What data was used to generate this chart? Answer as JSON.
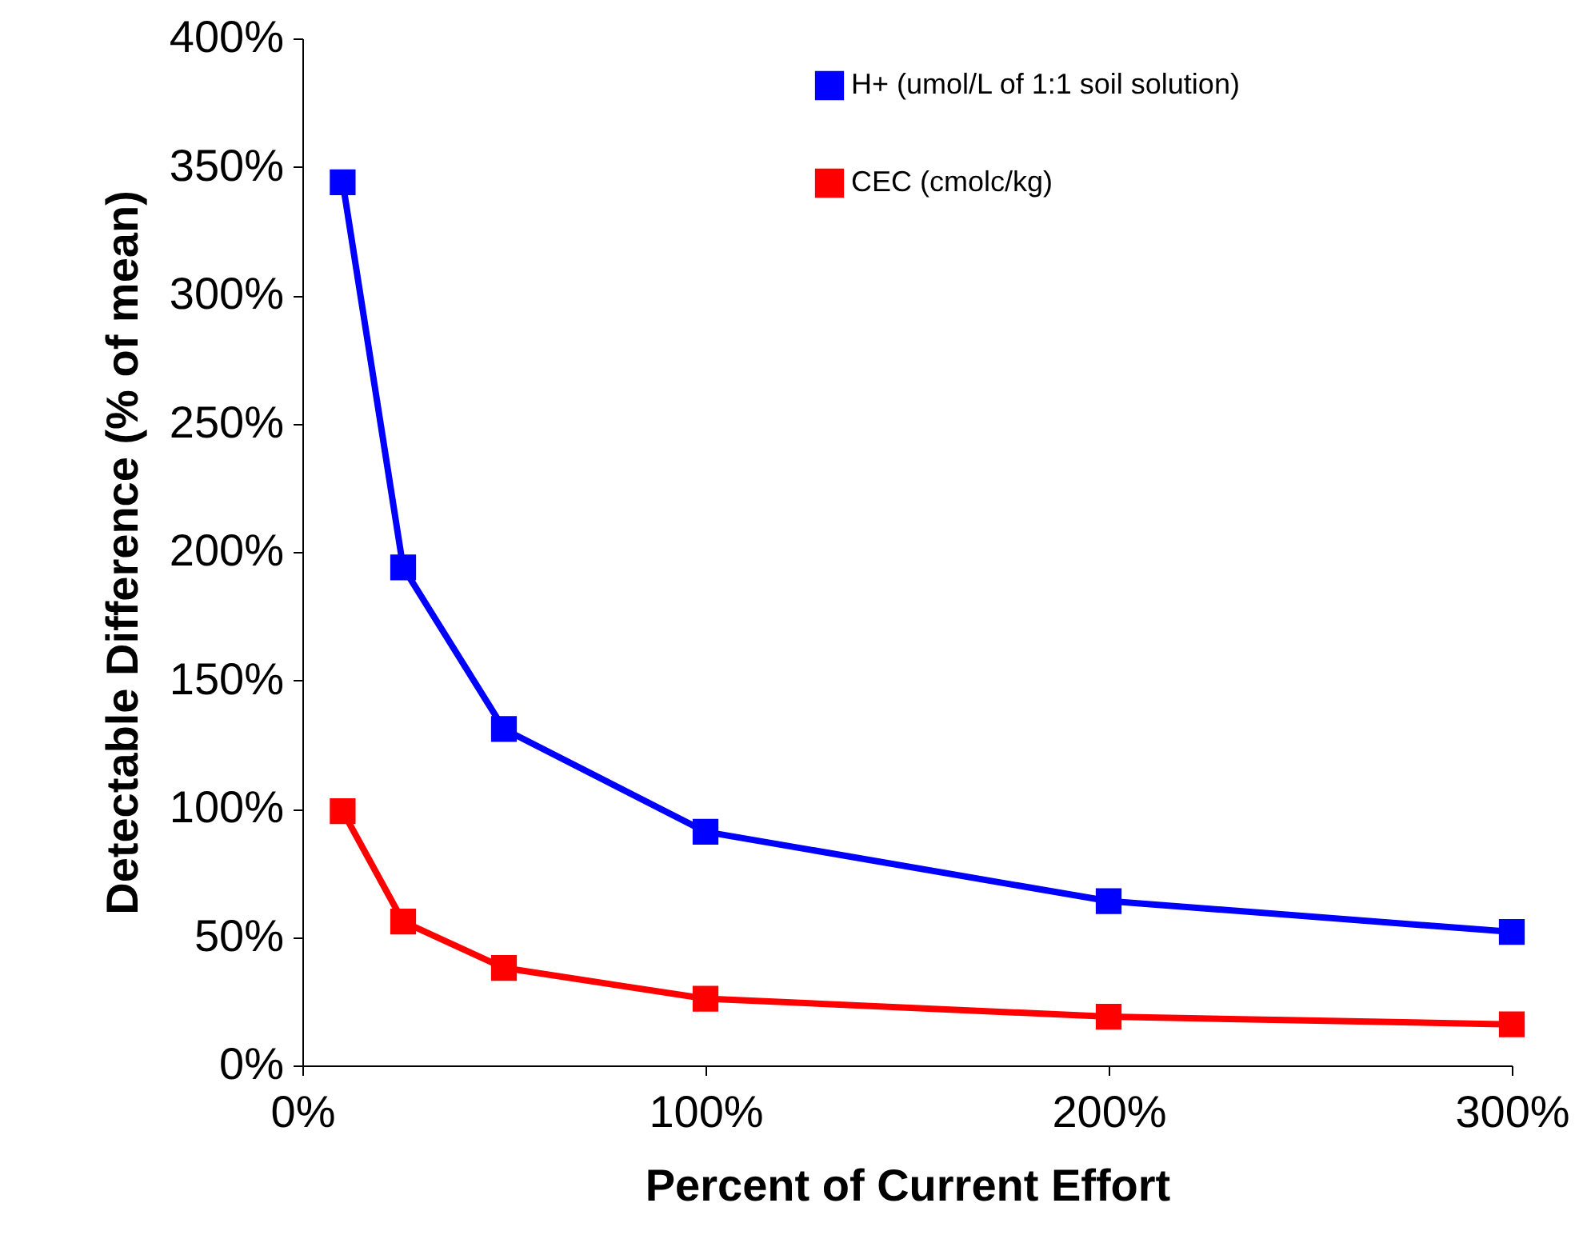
{
  "chart_data": {
    "type": "line",
    "xlabel": "Percent of Current Effort",
    "ylabel": "Detectable Difference (% of mean)",
    "x": [
      10,
      25,
      50,
      100,
      200,
      300
    ],
    "series": [
      {
        "name": "H+ (umol/L of 1:1 soil solution)",
        "color": "#0000ff",
        "values": [
          344,
          194,
          131,
          91,
          64,
          52
        ]
      },
      {
        "name": "CEC  (cmolc/kg)",
        "color": "#ff0000",
        "values": [
          99,
          56,
          38,
          26,
          19,
          16
        ]
      }
    ],
    "xlim": [
      0,
      300
    ],
    "xticks": [
      {
        "value": 0,
        "label": "0%"
      },
      {
        "value": 100,
        "label": "100%"
      },
      {
        "value": 200,
        "label": "200%"
      },
      {
        "value": 300,
        "label": "300%"
      }
    ],
    "ylim": [
      0,
      400
    ],
    "yticks": [
      {
        "value": 0,
        "label": "0%"
      },
      {
        "value": 50,
        "label": "50%"
      },
      {
        "value": 100,
        "label": "100%"
      },
      {
        "value": 150,
        "label": "150%"
      },
      {
        "value": 200,
        "label": "200%"
      },
      {
        "value": 250,
        "label": "250%"
      },
      {
        "value": 300,
        "label": "300%"
      },
      {
        "value": 350,
        "label": "350%"
      },
      {
        "value": 400,
        "label": "400%"
      }
    ],
    "grid": false,
    "legend": "top right",
    "marker": "square",
    "line_style": "solid"
  }
}
